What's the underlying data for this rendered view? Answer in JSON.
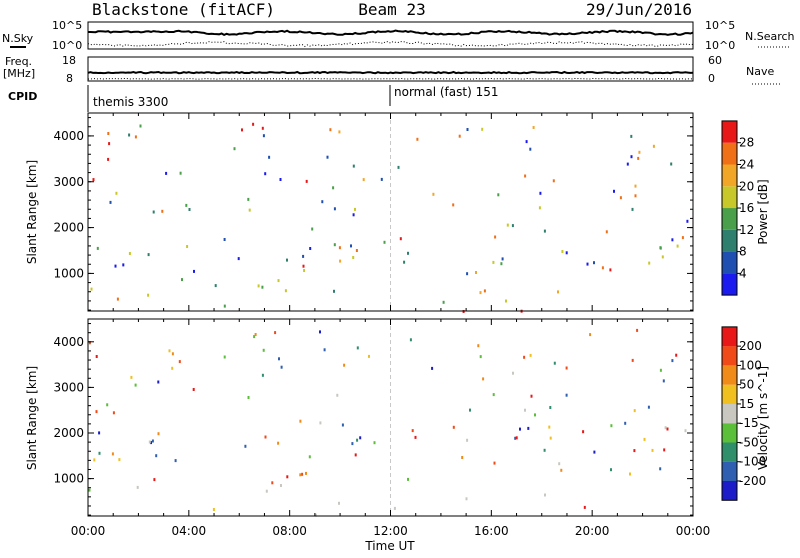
{
  "header": {
    "station": "Blackstone (fitACF)",
    "beam": "Beam 23",
    "date": "29/Jun/2016"
  },
  "side_labels": {
    "nsky": "N.Sky",
    "nsearch": "N.Search",
    "freq_line1": "Freq.",
    "freq_line2": "[MHz]",
    "cpid": "CPID",
    "nave": "Nave",
    "nsky_top": "10^5",
    "nsky_bottom": "10^0",
    "nsearch_top": "10^5",
    "nsearch_bottom": "10^0",
    "freq_top": "18",
    "freq_bottom": "8",
    "nave_top": "60",
    "nave_bottom": "0"
  },
  "cpid_modes": [
    {
      "label": "themis 3300",
      "start_hour": 0
    },
    {
      "label": "normal (fast) 151",
      "start_hour": 12
    }
  ],
  "chart_data": [
    {
      "type": "heatmap",
      "name": "power",
      "ylabel": "Slant Range [km]",
      "xlabel": "",
      "colorbar_label": "Power [dB]",
      "ylim": [
        180,
        4500
      ],
      "yticks": [
        1000,
        2000,
        3000,
        4000
      ],
      "xlim": [
        0,
        24
      ],
      "colorbar": {
        "ticks": [
          "4",
          "8",
          "12",
          "16",
          "20",
          "24",
          "28"
        ],
        "colors": [
          "#1b1bf0",
          "#1f4fb0",
          "#2f7f6f",
          "#4aa04a",
          "#c8c82a",
          "#f2a628",
          "#f07018",
          "#e81818"
        ]
      },
      "scatter_regions": [
        {
          "t0": 0.0,
          "t1": 2.8,
          "r0": 180,
          "r1": 500,
          "level": 6
        },
        {
          "t0": 0.3,
          "t1": 2.0,
          "r0": 180,
          "r1": 350,
          "level": 7
        },
        {
          "t0": 0.0,
          "t1": 11.5,
          "r0": 300,
          "r1": 1000,
          "level": 3
        },
        {
          "t0": 3.0,
          "t1": 10.0,
          "r0": 500,
          "r1": 1000,
          "level": 4
        },
        {
          "t0": 5.5,
          "t1": 8.0,
          "r0": 550,
          "r1": 850,
          "level": 5
        },
        {
          "t0": 0.0,
          "t1": 2.5,
          "r0": 1100,
          "r1": 1700,
          "level": 3
        },
        {
          "t0": 3.5,
          "t1": 4.8,
          "r0": 1800,
          "r1": 2600,
          "level": 2
        },
        {
          "t0": 10.0,
          "t1": 11.0,
          "r0": 1800,
          "r1": 2200,
          "level": 2
        },
        {
          "t0": 12.0,
          "t1": 20.0,
          "r0": 200,
          "r1": 900,
          "level": 4
        },
        {
          "t0": 13.5,
          "t1": 19.5,
          "r0": 200,
          "r1": 700,
          "level": 6
        },
        {
          "t0": 16.0,
          "t1": 19.5,
          "r0": 200,
          "r1": 500,
          "level": 7
        },
        {
          "t0": 20.5,
          "t1": 21.8,
          "r0": 250,
          "r1": 700,
          "level": 5
        },
        {
          "t0": 22.2,
          "t1": 24.0,
          "r0": 1300,
          "r1": 1700,
          "level": 3
        },
        {
          "t0": 22.8,
          "t1": 24.0,
          "r0": 600,
          "r1": 900,
          "level": 5
        }
      ]
    },
    {
      "type": "heatmap",
      "name": "velocity",
      "ylabel": "Slant Range [km]",
      "xlabel": "Time UT",
      "colorbar_label": "Velocity [m s^-1]",
      "ylim": [
        180,
        4500
      ],
      "yticks": [
        1000,
        2000,
        3000,
        4000
      ],
      "xlim": [
        0,
        24
      ],
      "xticks": [
        "00:00",
        "04:00",
        "08:00",
        "12:00",
        "16:00",
        "20:00",
        "00:00"
      ],
      "colorbar": {
        "ticks": [
          "200",
          "100",
          "50",
          "15",
          "-15",
          "-50",
          "-100",
          "-200"
        ],
        "colors": [
          "#1c1cc8",
          "#2f5fb0",
          "#2f8f6a",
          "#5cbf3a",
          "#c8c8c0",
          "#f0c020",
          "#f08a18",
          "#f04a18",
          "#e81818"
        ]
      },
      "scatter_regions": [
        {
          "t0": 0.0,
          "t1": 11.5,
          "r0": 200,
          "r1": 1000,
          "level": 4
        },
        {
          "t0": 0.0,
          "t1": 2.5,
          "r0": 1100,
          "r1": 1700,
          "level": 4
        },
        {
          "t0": 5.5,
          "t1": 7.5,
          "r0": 550,
          "r1": 1100,
          "level": 6
        },
        {
          "t0": 3.5,
          "t1": 4.5,
          "r0": 900,
          "r1": 1400,
          "level": 6
        },
        {
          "t0": 12.0,
          "t1": 20.0,
          "r0": 300,
          "r1": 900,
          "level": 4
        },
        {
          "t0": 17.0,
          "t1": 21.0,
          "r0": 200,
          "r1": 600,
          "level": 8
        },
        {
          "t0": 22.2,
          "t1": 24.0,
          "r0": 1300,
          "r1": 1700,
          "level": 7
        },
        {
          "t0": 0.0,
          "t1": 4.0,
          "r0": 180,
          "r1": 300,
          "level": 6
        }
      ]
    }
  ]
}
